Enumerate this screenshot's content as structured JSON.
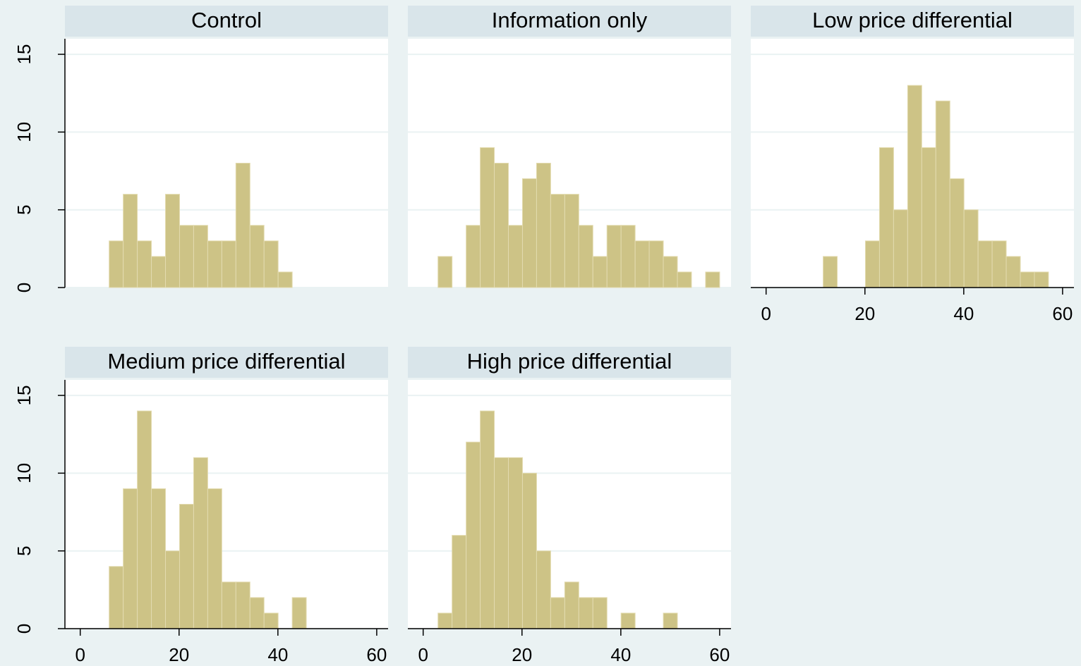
{
  "chart_data": [
    {
      "type": "histogram",
      "title": "Control",
      "color": "#cdc386",
      "bins": [
        3,
        5.85,
        8.7,
        11.55,
        14.4,
        17.25,
        20.1,
        22.95,
        25.8,
        28.65,
        31.5,
        34.35,
        37.2,
        40.05,
        42.9,
        45.75,
        48.6,
        51.45,
        54.3,
        57.15,
        60
      ],
      "values": [
        0,
        3,
        6,
        3,
        2,
        6,
        4,
        4,
        3,
        3,
        8,
        4,
        3,
        1,
        0,
        0,
        0,
        0,
        0,
        0
      ],
      "xlim": [
        -3.1,
        62.3
      ],
      "ylim": [
        0,
        16
      ],
      "yticks": [
        0,
        5,
        10,
        15
      ],
      "grid": true,
      "x_axis": false,
      "y_axis": true
    },
    {
      "type": "histogram",
      "title": "Information only",
      "color": "#cdc386",
      "bins": [
        3,
        5.85,
        8.7,
        11.55,
        14.4,
        17.25,
        20.1,
        22.95,
        25.8,
        28.65,
        31.5,
        34.35,
        37.2,
        40.05,
        42.9,
        45.75,
        48.6,
        51.45,
        54.3,
        57.15,
        60
      ],
      "values": [
        2,
        0,
        4,
        9,
        8,
        4,
        7,
        8,
        6,
        6,
        4,
        2,
        4,
        4,
        3,
        3,
        2,
        1,
        0,
        1
      ],
      "xlim": [
        -3.1,
        62.3
      ],
      "ylim": [
        0,
        16
      ],
      "yticks": [
        0,
        5,
        10,
        15
      ],
      "grid": true,
      "x_axis": false,
      "y_axis": false
    },
    {
      "type": "histogram",
      "title": "Low price differential",
      "color": "#cdc386",
      "bins": [
        3,
        5.85,
        8.7,
        11.55,
        14.4,
        17.25,
        20.1,
        22.95,
        25.8,
        28.65,
        31.5,
        34.35,
        37.2,
        40.05,
        42.9,
        45.75,
        48.6,
        51.45,
        54.3,
        57.15,
        60
      ],
      "values": [
        0,
        0,
        0,
        2,
        0,
        0,
        3,
        9,
        5,
        13,
        9,
        12,
        7,
        5,
        3,
        3,
        2,
        1,
        1,
        0
      ],
      "xlim": [
        -3.1,
        62.3
      ],
      "ylim": [
        0,
        16
      ],
      "xticks": [
        0,
        20,
        40,
        60
      ],
      "yticks": [
        0,
        5,
        10,
        15
      ],
      "grid": true,
      "x_axis": true,
      "y_axis": false
    },
    {
      "type": "histogram",
      "title": "Medium price differential",
      "color": "#cdc386",
      "bins": [
        3,
        5.85,
        8.7,
        11.55,
        14.4,
        17.25,
        20.1,
        22.95,
        25.8,
        28.65,
        31.5,
        34.35,
        37.2,
        40.05,
        42.9,
        45.75,
        48.6,
        51.45,
        54.3,
        57.15,
        60
      ],
      "values": [
        0,
        4,
        9,
        14,
        9,
        5,
        8,
        11,
        9,
        3,
        3,
        2,
        1,
        0,
        2,
        0,
        0,
        0,
        0,
        0
      ],
      "xlim": [
        -3.1,
        62.3
      ],
      "ylim": [
        0,
        16
      ],
      "xticks": [
        0,
        20,
        40,
        60
      ],
      "yticks": [
        0,
        5,
        10,
        15
      ],
      "grid": true,
      "x_axis": true,
      "y_axis": true
    },
    {
      "type": "histogram",
      "title": "High price differential",
      "color": "#cdc386",
      "bins": [
        3,
        5.85,
        8.7,
        11.55,
        14.4,
        17.25,
        20.1,
        22.95,
        25.8,
        28.65,
        31.5,
        34.35,
        37.2,
        40.05,
        42.9,
        45.75,
        48.6,
        51.45,
        54.3,
        57.15,
        60
      ],
      "values": [
        1,
        6,
        12,
        14,
        11,
        11,
        10,
        5,
        2,
        3,
        2,
        2,
        0,
        1,
        0,
        0,
        1,
        0,
        0,
        0
      ],
      "xlim": [
        -3.1,
        62.3
      ],
      "ylim": [
        0,
        16
      ],
      "xticks": [
        0,
        20,
        40,
        60
      ],
      "yticks": [
        0,
        5,
        10,
        15
      ],
      "grid": true,
      "x_axis": true,
      "y_axis": false
    }
  ]
}
